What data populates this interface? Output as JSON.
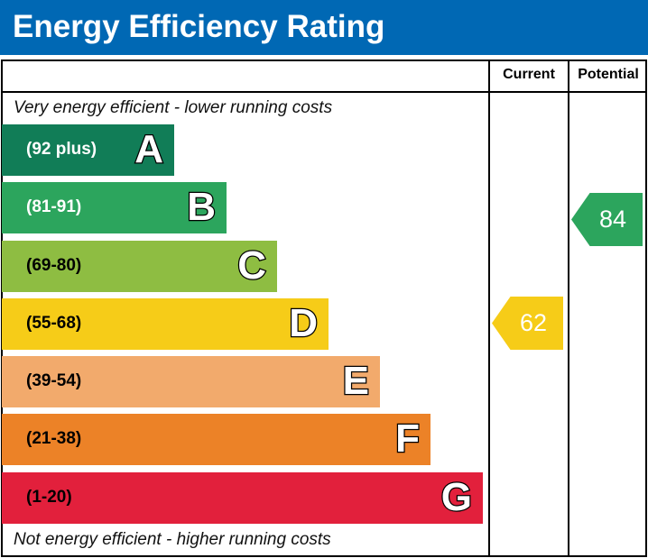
{
  "header": {
    "title": "Energy Efficiency Rating"
  },
  "columns": {
    "current": "Current",
    "potential": "Potential"
  },
  "notes": {
    "top": "Very energy efficient - lower running costs",
    "bottom": "Not energy efficient - higher running costs"
  },
  "chart_data": {
    "type": "bar",
    "categories": [
      "A",
      "B",
      "C",
      "D",
      "E",
      "F",
      "G"
    ],
    "bands": [
      {
        "letter": "A",
        "range": "(92 plus)",
        "color": "#117d57",
        "text_color": "#ffffff"
      },
      {
        "letter": "B",
        "range": "(81-91)",
        "color": "#2ca55d",
        "text_color": "#ffffff"
      },
      {
        "letter": "C",
        "range": "(69-80)",
        "color": "#8ebd42",
        "text_color": "#000000"
      },
      {
        "letter": "D",
        "range": "(55-68)",
        "color": "#f6cc18",
        "text_color": "#000000"
      },
      {
        "letter": "E",
        "range": "(39-54)",
        "color": "#f2aa6c",
        "text_color": "#000000"
      },
      {
        "letter": "F",
        "range": "(21-38)",
        "color": "#ec8227",
        "text_color": "#000000"
      },
      {
        "letter": "G",
        "range": "(1-20)",
        "color": "#e2203c",
        "text_color": "#000000"
      }
    ],
    "current": {
      "value": "62",
      "band": "D",
      "color": "#f6cc18"
    },
    "potential": {
      "value": "84",
      "band": "B",
      "color": "#2ca55d"
    }
  }
}
